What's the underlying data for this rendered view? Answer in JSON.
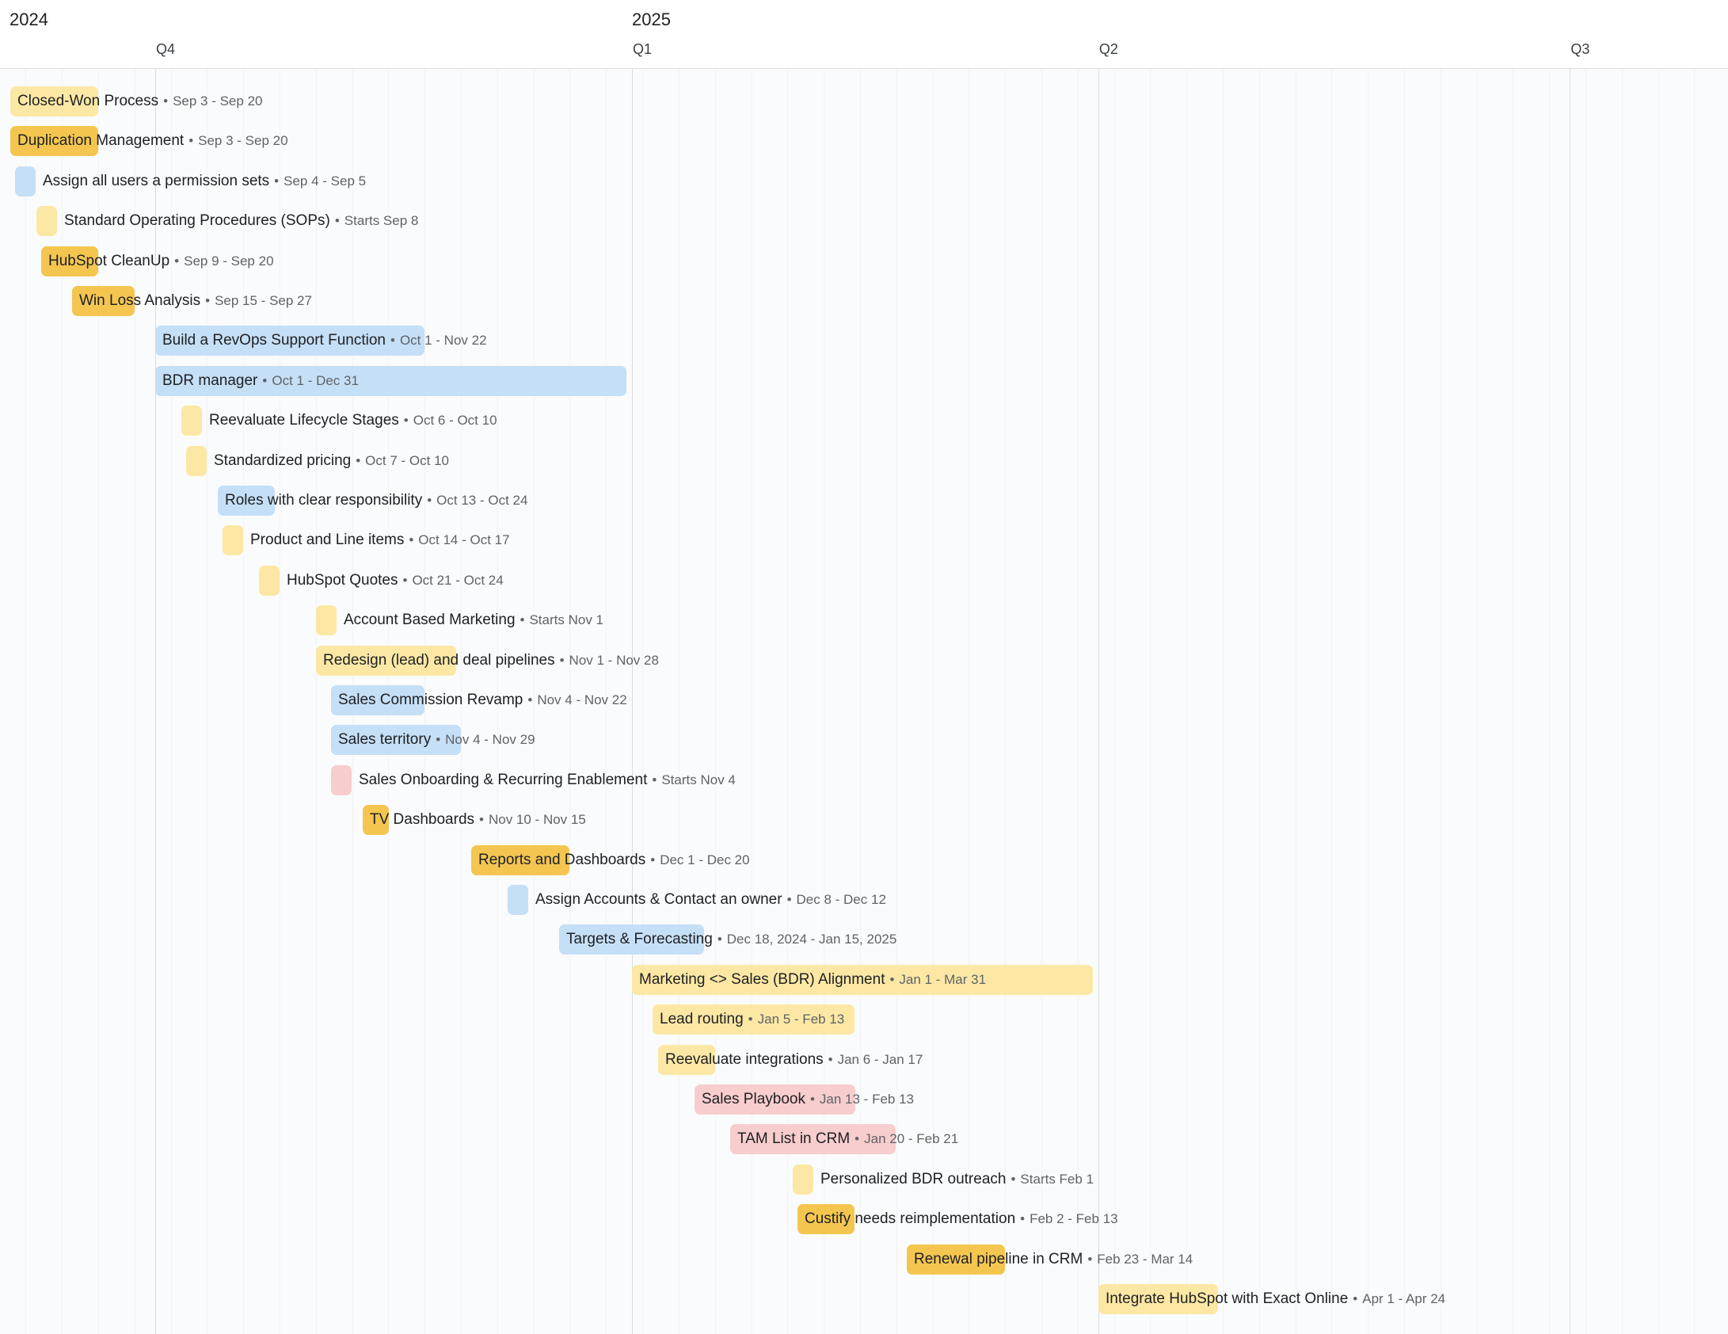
{
  "timeline": {
    "years": [
      {
        "label": "2024",
        "date": "2024-09-01"
      },
      {
        "label": "2025",
        "date": "2025-01-01"
      }
    ],
    "quarters": [
      {
        "label": "Q4",
        "date": "2024-10-01"
      },
      {
        "label": "Q1",
        "date": "2025-01-01"
      },
      {
        "label": "Q2",
        "date": "2025-04-01"
      },
      {
        "label": "Q3",
        "date": "2025-07-01"
      }
    ],
    "view_start": "2024-08-30",
    "view_end": "2025-07-31"
  },
  "colors": {
    "yellow_light": "#fce8a4",
    "yellow_dark": "#f4c650",
    "blue": "#c5dff6",
    "red": "#f8cdcd"
  },
  "tasks": [
    {
      "name": "Closed-Won Process",
      "dates": "Sep 3 - Sep 20",
      "start": "2024-09-03",
      "end": "2024-09-20",
      "color": "#fce8a4"
    },
    {
      "name": "Duplication Management",
      "dates": "Sep 3 - Sep 20",
      "start": "2024-09-03",
      "end": "2024-09-20",
      "color": "#f4c650"
    },
    {
      "name": "Assign all users a permission sets",
      "dates": "Sep 4 - Sep 5",
      "start": "2024-09-04",
      "end": "2024-09-05",
      "color": "#c5dff6"
    },
    {
      "name": "Standard Operating Procedures (SOPs)",
      "dates": "Starts Sep 8",
      "start": "2024-09-08",
      "end": "2024-09-09",
      "color": "#fce8a4"
    },
    {
      "name": "HubSpot CleanUp",
      "dates": "Sep 9 - Sep 20",
      "start": "2024-09-09",
      "end": "2024-09-20",
      "color": "#f4c650"
    },
    {
      "name": "Win Loss Analysis",
      "dates": "Sep 15 - Sep 27",
      "start": "2024-09-15",
      "end": "2024-09-27",
      "color": "#f4c650"
    },
    {
      "name": "Build a RevOps Support Function",
      "dates": "Oct 1 - Nov 22",
      "start": "2024-10-01",
      "end": "2024-11-22",
      "color": "#c5dff6"
    },
    {
      "name": "BDR manager",
      "dates": "Oct 1 - Dec 31",
      "start": "2024-10-01",
      "end": "2024-12-31",
      "color": "#c5dff6"
    },
    {
      "name": "Reevaluate Lifecycle Stages",
      "dates": "Oct 6 - Oct 10",
      "start": "2024-10-06",
      "end": "2024-10-10",
      "color": "#fce8a4"
    },
    {
      "name": "Standardized pricing",
      "dates": "Oct 7 - Oct 10",
      "start": "2024-10-07",
      "end": "2024-10-10",
      "color": "#fce8a4"
    },
    {
      "name": "Roles with clear responsibility",
      "dates": "Oct 13 - Oct 24",
      "start": "2024-10-13",
      "end": "2024-10-24",
      "color": "#c5dff6"
    },
    {
      "name": "Product and Line items",
      "dates": "Oct 14 - Oct 17",
      "start": "2024-10-14",
      "end": "2024-10-17",
      "color": "#fce8a4"
    },
    {
      "name": "HubSpot Quotes",
      "dates": "Oct 21 - Oct 24",
      "start": "2024-10-21",
      "end": "2024-10-24",
      "color": "#fce8a4"
    },
    {
      "name": "Account Based Marketing",
      "dates": "Starts Nov 1",
      "start": "2024-11-01",
      "end": "2024-11-02",
      "color": "#fce8a4"
    },
    {
      "name": "Redesign (lead) and deal pipelines",
      "dates": "Nov 1 - Nov 28",
      "start": "2024-11-01",
      "end": "2024-11-28",
      "color": "#fce8a4"
    },
    {
      "name": "Sales Commission Revamp",
      "dates": "Nov 4 - Nov 22",
      "start": "2024-11-04",
      "end": "2024-11-22",
      "color": "#c5dff6"
    },
    {
      "name": "Sales territory",
      "dates": "Nov 4 - Nov 29",
      "start": "2024-11-04",
      "end": "2024-11-29",
      "color": "#c5dff6"
    },
    {
      "name": "Sales Onboarding & Recurring Enablement",
      "dates": "Starts Nov 4",
      "start": "2024-11-04",
      "end": "2024-11-05",
      "color": "#f8cdcd"
    },
    {
      "name": "TV Dashboards",
      "dates": "Nov 10 - Nov 15",
      "start": "2024-11-10",
      "end": "2024-11-15",
      "color": "#f4c650"
    },
    {
      "name": "Reports and Dashboards",
      "dates": "Dec 1 - Dec 20",
      "start": "2024-12-01",
      "end": "2024-12-20",
      "color": "#f4c650"
    },
    {
      "name": "Assign Accounts & Contact an owner",
      "dates": "Dec 8 - Dec 12",
      "start": "2024-12-08",
      "end": "2024-12-12",
      "color": "#c5dff6"
    },
    {
      "name": "Targets & Forecasting",
      "dates": "Dec 18, 2024 - Jan 15, 2025",
      "start": "2024-12-18",
      "end": "2025-01-15",
      "color": "#c5dff6"
    },
    {
      "name": "Marketing <> Sales (BDR) Alignment",
      "dates": "Jan 1 - Mar 31",
      "start": "2025-01-01",
      "end": "2025-03-31",
      "color": "#fce8a4"
    },
    {
      "name": "Lead routing",
      "dates": "Jan 5 - Feb 13",
      "start": "2025-01-05",
      "end": "2025-02-13",
      "color": "#fce8a4"
    },
    {
      "name": "Reevaluate integrations",
      "dates": "Jan 6 - Jan 17",
      "start": "2025-01-06",
      "end": "2025-01-17",
      "color": "#fce8a4"
    },
    {
      "name": "Sales Playbook",
      "dates": "Jan 13 - Feb 13",
      "start": "2025-01-13",
      "end": "2025-02-13",
      "color": "#f8cdcd"
    },
    {
      "name": "TAM List in CRM",
      "dates": "Jan 20 - Feb 21",
      "start": "2025-01-20",
      "end": "2025-02-21",
      "color": "#f8cdcd"
    },
    {
      "name": "Personalized BDR outreach",
      "dates": "Starts Feb 1",
      "start": "2025-02-01",
      "end": "2025-02-02",
      "color": "#fce8a4"
    },
    {
      "name": "Custify needs reimplementation",
      "dates": "Feb 2 - Feb 13",
      "start": "2025-02-02",
      "end": "2025-02-13",
      "color": "#f4c650"
    },
    {
      "name": "Renewal pipeline in CRM",
      "dates": "Feb 23 - Mar 14",
      "start": "2025-02-23",
      "end": "2025-03-14",
      "color": "#f4c650"
    },
    {
      "name": "Integrate HubSpot with Exact Online",
      "dates": "Apr 1 - Apr 24",
      "start": "2025-04-01",
      "end": "2025-04-24",
      "color": "#fce8a4"
    }
  ]
}
